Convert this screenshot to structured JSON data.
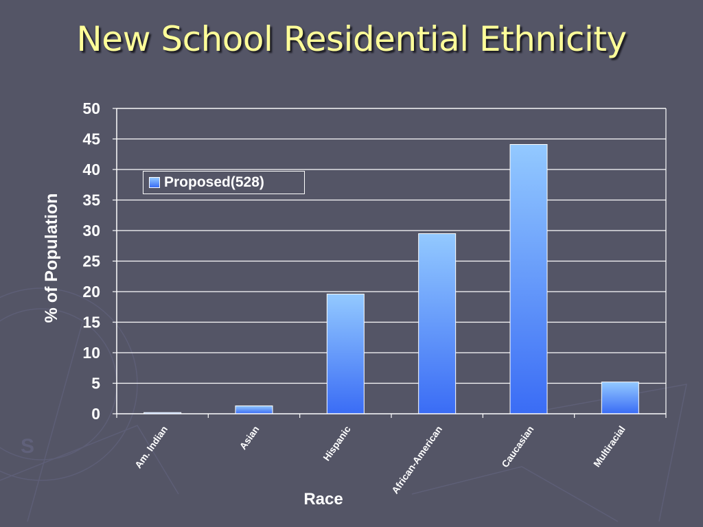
{
  "title": "New School Residential Ethnicity",
  "colors": {
    "background": "#545566",
    "title": "#ffff99",
    "bar_top": "#93c9ff",
    "bar_bottom": "#3a6cf5",
    "text": "#ffffff"
  },
  "chart_data": {
    "type": "bar",
    "title": "",
    "xlabel": "Race",
    "ylabel": "% of Population",
    "categories": [
      "Am. Indian",
      "Asian",
      "Hispanic",
      "African-American",
      "Caucasian",
      "Multiracial"
    ],
    "series": [
      {
        "name": "Proposed(528)",
        "values": [
          0.2,
          1.3,
          19.6,
          29.5,
          44.1,
          5.2
        ]
      }
    ],
    "ylim": [
      0,
      50
    ],
    "yticks": [
      0,
      5,
      10,
      15,
      20,
      25,
      30,
      35,
      40,
      45,
      50
    ],
    "grid": true,
    "legend_position": "top-left"
  }
}
